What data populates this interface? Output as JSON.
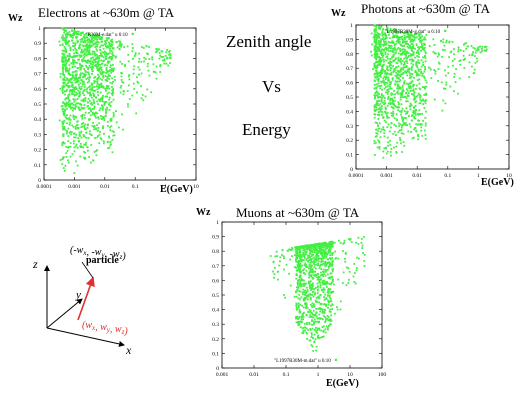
{
  "headings": {
    "line1": "Zenith angle",
    "line2": "Vs",
    "line3": "Energy"
  },
  "colors": {
    "points": "#44ee44",
    "frame": "#000000",
    "particle_arrow": "#e03030"
  },
  "diagram": {
    "particle_label": "particle",
    "reverse_label": "(-w_x, -w_y, -w_z)",
    "vector_label": "(w_x, w_y, w_z)",
    "z_axis": "z",
    "y_axis": "y",
    "x_axis": "x"
  },
  "chart_data": [
    {
      "id": "electrons",
      "type": "scatter",
      "title": "Electrons at ~630m @ TA",
      "ylabel": "Wz",
      "xlabel": "E(GeV)",
      "xscale": "log",
      "xlim": [
        0.0001,
        10
      ],
      "ylim": [
        0,
        1
      ],
      "xticks": [
        "0.0001",
        "0.001",
        "0.01",
        "0.1",
        "1",
        "10"
      ],
      "yticks": [
        "0",
        "0.1",
        "0.2",
        "0.3",
        "0.4",
        "0.5",
        "0.6",
        "0.7",
        "0.8",
        "0.9",
        "1"
      ],
      "legend": "\"R30M-e.dat\" u 6:10",
      "legend_position": "top",
      "series": [
        {
          "values_summary": "dense cloud",
          "cloud": {
            "x_min": 0.0003,
            "x_peak_lo": 0.0004,
            "x_peak_hi": 0.02,
            "x_max": 1.5,
            "y_min": 0.02,
            "y_max": 1.0
          }
        }
      ]
    },
    {
      "id": "photons",
      "type": "scatter",
      "title": "Photons at ~630m @ TA",
      "ylabel": "Wz",
      "xlabel": "E(GeV)",
      "xscale": "log",
      "xlim": [
        0.0001,
        10
      ],
      "ylim": [
        0,
        1
      ],
      "xticks": [
        "0.0001",
        "0.001",
        "0.01",
        "0.1",
        "1",
        "10"
      ],
      "yticks": [
        "0",
        "0.1",
        "0.2",
        "0.3",
        "0.4",
        "0.5",
        "0.6",
        "0.7",
        "0.8",
        "0.9",
        "1"
      ],
      "legend": "\"L1997R30M-g.dat\" u 6:10",
      "legend_position": "top",
      "series": [
        {
          "values_summary": "dense cloud",
          "cloud": {
            "x_min": 0.0003,
            "x_peak_lo": 0.0004,
            "x_peak_hi": 0.02,
            "x_max": 2.0,
            "y_min": 0.05,
            "y_max": 1.0
          }
        }
      ]
    },
    {
      "id": "muons",
      "type": "scatter",
      "title": "Muons at ~630m @ TA",
      "ylabel": "Wz",
      "xlabel": "E(GeV)",
      "xscale": "log",
      "xlim": [
        0.001,
        100
      ],
      "ylim": [
        0,
        1
      ],
      "xticks": [
        "0.001",
        "0.01",
        "0.1",
        "1",
        "10",
        "100"
      ],
      "yticks": [
        "0",
        "0.1",
        "0.2",
        "0.3",
        "0.4",
        "0.5",
        "0.6",
        "0.7",
        "0.8",
        "0.9",
        "1"
      ],
      "legend": "\"L1997R30M-m.dat\" u 6:10",
      "legend_position": "bottom-right",
      "series": [
        {
          "values_summary": "dense cluster",
          "cloud": {
            "x_min": 0.03,
            "x_peak_lo": 0.2,
            "x_peak_hi": 3,
            "x_max": 30,
            "y_min": 0.1,
            "y_max": 0.9
          }
        }
      ]
    }
  ]
}
